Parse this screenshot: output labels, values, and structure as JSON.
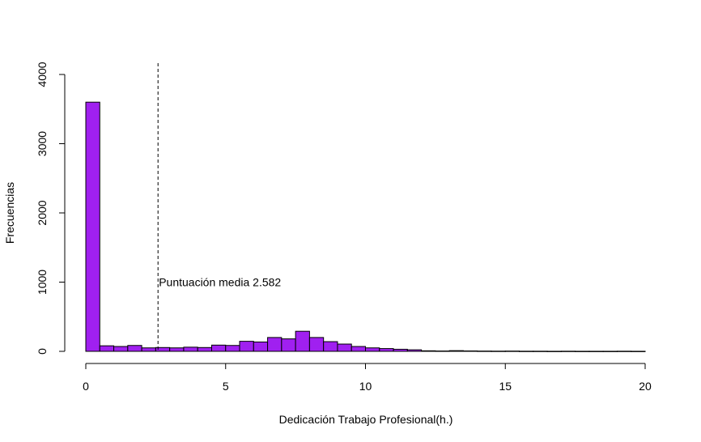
{
  "chart_data": {
    "type": "bar",
    "title": "",
    "xlabel": "Dedicación Trabajo Profesional(h.)",
    "ylabel": "Frecuencias",
    "xlim": [
      0,
      20
    ],
    "ylim": [
      0,
      4000
    ],
    "x_ticks": [
      "0",
      "5",
      "10",
      "15",
      "20"
    ],
    "y_ticks": [
      "0",
      "1000",
      "2000",
      "3000",
      "4000"
    ],
    "bin_width": 0.5,
    "bins": [
      {
        "start": 0.0,
        "end": 0.5,
        "count": 3600
      },
      {
        "start": 0.5,
        "end": 1.0,
        "count": 80
      },
      {
        "start": 1.0,
        "end": 1.5,
        "count": 70
      },
      {
        "start": 1.5,
        "end": 2.0,
        "count": 85
      },
      {
        "start": 2.0,
        "end": 2.5,
        "count": 50
      },
      {
        "start": 2.5,
        "end": 3.0,
        "count": 55
      },
      {
        "start": 3.0,
        "end": 3.5,
        "count": 50
      },
      {
        "start": 3.5,
        "end": 4.0,
        "count": 60
      },
      {
        "start": 4.0,
        "end": 4.5,
        "count": 55
      },
      {
        "start": 4.5,
        "end": 5.0,
        "count": 90
      },
      {
        "start": 5.0,
        "end": 5.5,
        "count": 85
      },
      {
        "start": 5.5,
        "end": 6.0,
        "count": 145
      },
      {
        "start": 6.0,
        "end": 6.5,
        "count": 135
      },
      {
        "start": 6.5,
        "end": 7.0,
        "count": 200
      },
      {
        "start": 7.0,
        "end": 7.5,
        "count": 180
      },
      {
        "start": 7.5,
        "end": 8.0,
        "count": 290
      },
      {
        "start": 8.0,
        "end": 8.5,
        "count": 200
      },
      {
        "start": 8.5,
        "end": 9.0,
        "count": 140
      },
      {
        "start": 9.0,
        "end": 9.5,
        "count": 105
      },
      {
        "start": 9.5,
        "end": 10.0,
        "count": 70
      },
      {
        "start": 10.0,
        "end": 10.5,
        "count": 50
      },
      {
        "start": 10.5,
        "end": 11.0,
        "count": 40
      },
      {
        "start": 11.0,
        "end": 11.5,
        "count": 30
      },
      {
        "start": 11.5,
        "end": 12.0,
        "count": 22
      },
      {
        "start": 12.0,
        "end": 12.5,
        "count": 8
      },
      {
        "start": 12.5,
        "end": 13.0,
        "count": 5
      },
      {
        "start": 13.0,
        "end": 13.5,
        "count": 10
      },
      {
        "start": 13.5,
        "end": 14.0,
        "count": 6
      },
      {
        "start": 14.0,
        "end": 14.5,
        "count": 4
      },
      {
        "start": 14.5,
        "end": 15.0,
        "count": 3
      },
      {
        "start": 15.0,
        "end": 15.5,
        "count": 4
      },
      {
        "start": 15.5,
        "end": 16.0,
        "count": 2
      },
      {
        "start": 16.0,
        "end": 16.5,
        "count": 2
      },
      {
        "start": 16.5,
        "end": 17.0,
        "count": 1
      },
      {
        "start": 17.0,
        "end": 17.5,
        "count": 2
      },
      {
        "start": 17.5,
        "end": 18.0,
        "count": 1
      },
      {
        "start": 18.0,
        "end": 18.5,
        "count": 1
      },
      {
        "start": 18.5,
        "end": 19.0,
        "count": 1
      },
      {
        "start": 19.0,
        "end": 19.5,
        "count": 2
      },
      {
        "start": 19.5,
        "end": 20.0,
        "count": 1
      }
    ],
    "reference_line": {
      "x": 2.582,
      "style": "dashed",
      "label": "Puntuación media 2.582",
      "label_y": 1000
    },
    "bar_fill": "#a020f0",
    "bar_stroke": "#000000",
    "grid": false
  }
}
